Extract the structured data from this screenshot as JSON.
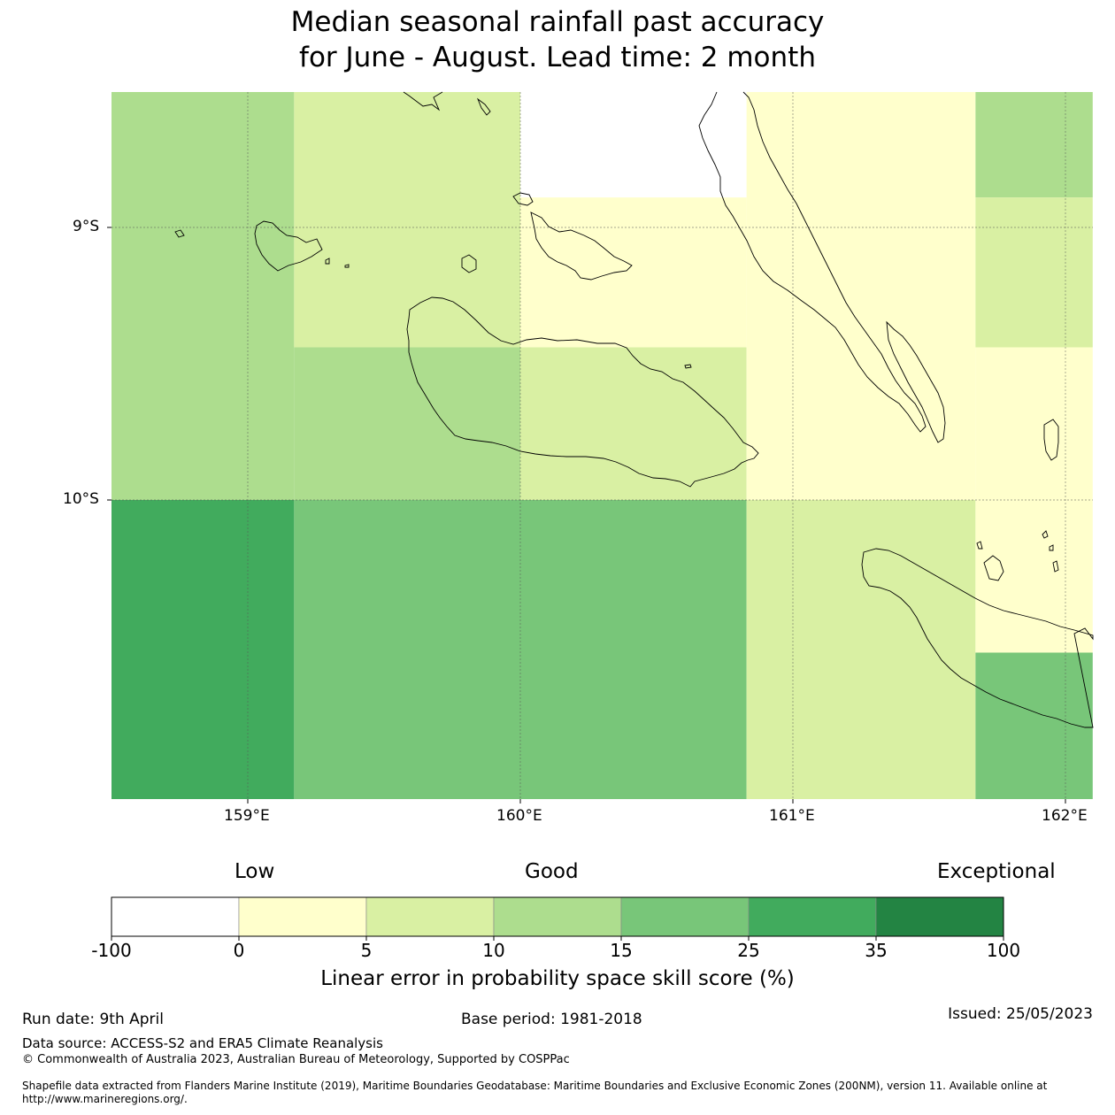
{
  "title": {
    "line1": "Median seasonal rainfall past accuracy",
    "line2": "for June - August. Lead time: 2 month"
  },
  "map": {
    "lat_labels": [
      "9°S",
      "10°S"
    ],
    "lon_labels": [
      "159°E",
      "160°E",
      "161°E",
      "162°E"
    ],
    "grid_cells": [
      {
        "lon": [
          158.5,
          159.17
        ],
        "lat": [
          -8.5,
          -10.0
        ],
        "category": 10
      },
      {
        "lon": [
          159.17,
          160.0
        ],
        "lat": [
          -8.5,
          -9.44
        ],
        "category": 5
      },
      {
        "lon": [
          159.17,
          160.0
        ],
        "lat": [
          -9.44,
          -10.0
        ],
        "category": 10
      },
      {
        "lon": [
          160.0,
          160.83
        ],
        "lat": [
          -8.5,
          -8.89
        ],
        "category": -100
      },
      {
        "lon": [
          160.0,
          160.83
        ],
        "lat": [
          -8.89,
          -9.44
        ],
        "category": 0
      },
      {
        "lon": [
          160.0,
          160.83
        ],
        "lat": [
          -9.44,
          -10.0
        ],
        "category": 5
      },
      {
        "lon": [
          160.83,
          161.67
        ],
        "lat": [
          -8.5,
          -10.0
        ],
        "category": 0
      },
      {
        "lon": [
          161.67,
          162.1
        ],
        "lat": [
          -8.5,
          -8.89
        ],
        "category": 10
      },
      {
        "lon": [
          161.67,
          162.1
        ],
        "lat": [
          -8.89,
          -9.44
        ],
        "category": 5
      },
      {
        "lon": [
          161.67,
          162.1
        ],
        "lat": [
          -9.44,
          -10.0
        ],
        "category": 0
      },
      {
        "lon": [
          158.5,
          159.17
        ],
        "lat": [
          -10.0,
          -11.1
        ],
        "category": 25
      },
      {
        "lon": [
          159.17,
          160.83
        ],
        "lat": [
          -10.0,
          -11.1
        ],
        "category": 15
      },
      {
        "lon": [
          160.83,
          161.67
        ],
        "lat": [
          -10.0,
          -11.1
        ],
        "category": 5
      },
      {
        "lon": [
          161.67,
          162.1
        ],
        "lat": [
          -10.0,
          -10.56
        ],
        "category": 0
      },
      {
        "lon": [
          161.67,
          162.1
        ],
        "lat": [
          -10.56,
          -11.1
        ],
        "category": 15
      }
    ]
  },
  "colorbar": {
    "category_labels": [
      "Low",
      "Good",
      "Exceptional"
    ],
    "ticks": [
      "-100",
      "0",
      "5",
      "10",
      "15",
      "25",
      "35",
      "100"
    ],
    "colors": [
      "#ffffff",
      "#ffffcc",
      "#d9f0a3",
      "#addd8e",
      "#78c679",
      "#41ab5d",
      "#238443"
    ],
    "label": "Linear error in probability space skill score (%)"
  },
  "footer": {
    "run_date": "Run date: 9th April",
    "base_period": "Base period: 1981-2018",
    "issued": "Issued: 25/05/2023",
    "data_source": "Data source: ACCESS-S2 and ERA5 Climate Reanalysis",
    "copyright": "© Commonwealth of Australia 2023, Australian Bureau of Meteorology, Supported by COSPPac",
    "shapefile": "Shapefile data extracted from Flanders Marine Institute (2019), Maritime Boundaries Geodatabase: Maritime Boundaries and Exclusive Economic Zones (200NM), version 11. Available online at http://www.marineregions.org/."
  }
}
